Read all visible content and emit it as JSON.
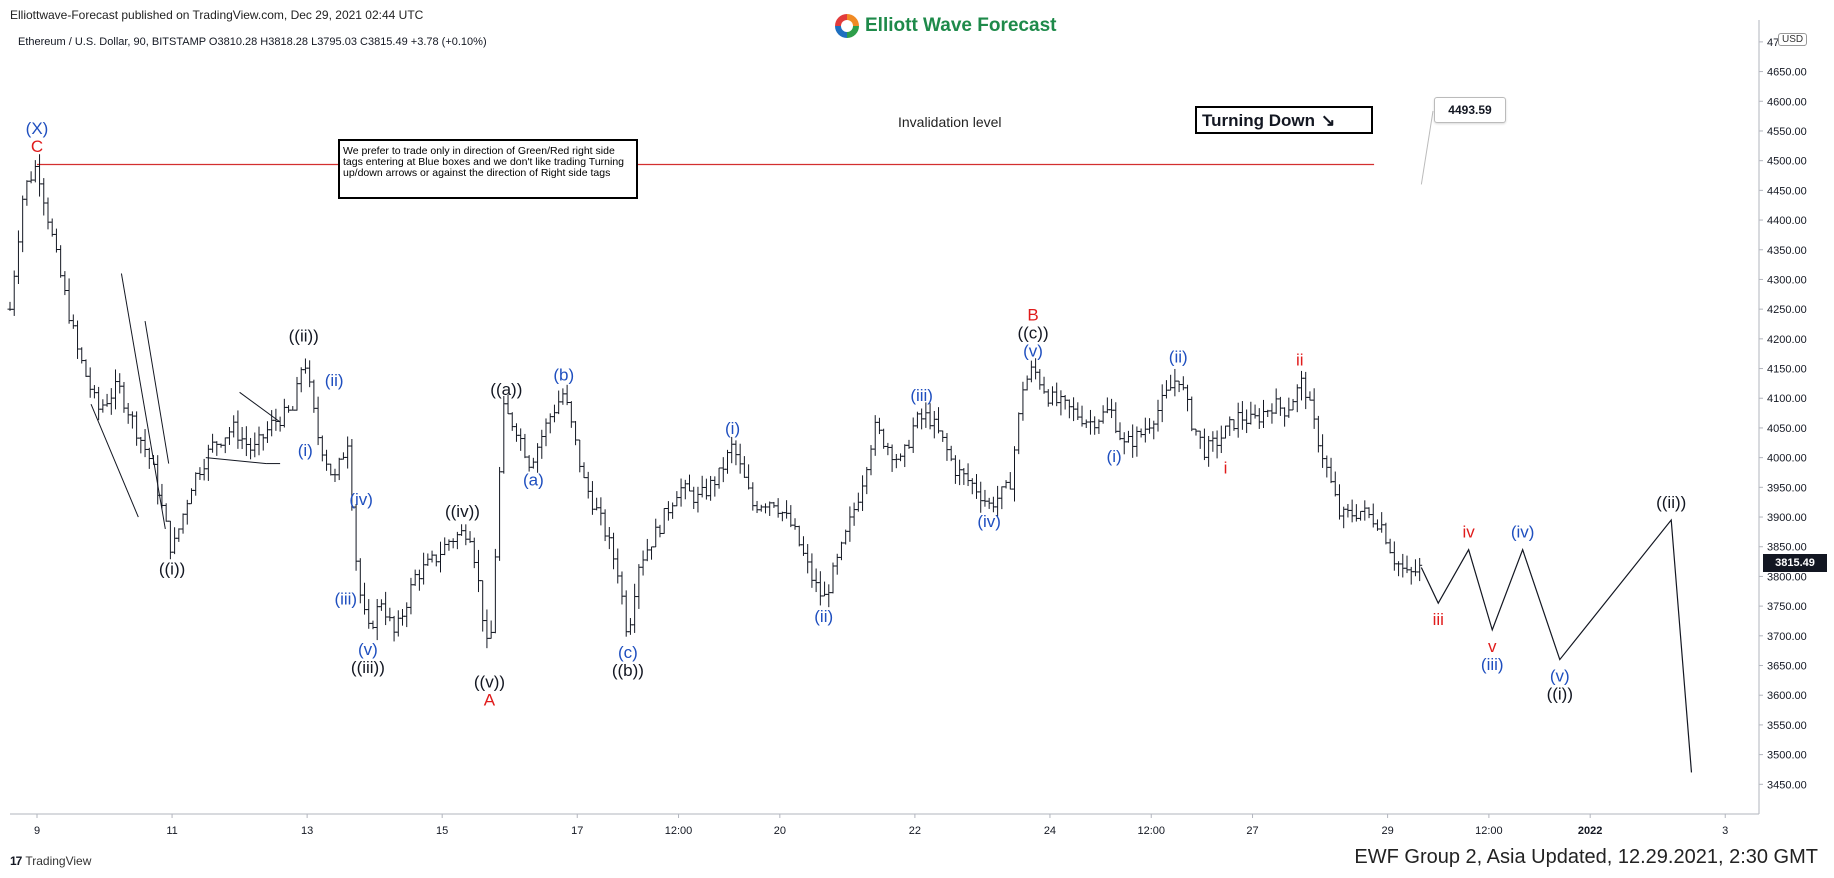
{
  "header": {
    "publisher": "Elliottwave-Forecast published on TradingView.com, Dec 29, 2021 02:44 UTC",
    "brand": "Elliott Wave Forecast",
    "symbol_line": "Ethereum / U.S. Dollar, 90, BITSTAMP  O3810.28  H3818.28  L3795.03  C3815.49  +3.78 (+0.10%)"
  },
  "footer": {
    "tradingview": "TradingView",
    "caption": "EWF Group 2, Asia Updated, 12.29.2021, 2:30 GMT"
  },
  "annotations": {
    "note": "We prefer to trade only in direction of Green/Red right side tags entering at Blue boxes and we don't like trading Turning up/down arrows or against the direction of Right side tags",
    "turning": "Turning Down",
    "turning_arrow": "↘",
    "invalidation_label": "Invalidation level",
    "invalidation_value": "4493.59",
    "currency": "USD",
    "current_price": "3815.49"
  },
  "colors": {
    "background": "#ffffff",
    "candle": "#131722",
    "wave_black": "#131722",
    "wave_blue": "#1f4fbf",
    "wave_red": "#e01b1b",
    "invalidation_line": "#d32f2f",
    "brand": "#1e8a4a"
  },
  "chart_data": {
    "type": "line",
    "title": "Ethereum / U.S. Dollar, 90, BITSTAMP",
    "y_axis": {
      "range": [
        3400,
        4720
      ],
      "ticks": [
        "4700.00",
        "4650.00",
        "4600.00",
        "4550.00",
        "4500.00",
        "4450.00",
        "4400.00",
        "4350.00",
        "4300.00",
        "4250.00",
        "4200.00",
        "4150.00",
        "4100.00",
        "4050.00",
        "4000.00",
        "3950.00",
        "3900.00",
        "3850.00",
        "3800.00",
        "3750.00",
        "3700.00",
        "3650.00",
        "3600.00",
        "3550.00",
        "3500.00",
        "3450.00"
      ]
    },
    "x_axis": {
      "range": [
        8.6,
        34.5
      ],
      "ticks": [
        {
          "t": 9,
          "label": "9"
        },
        {
          "t": 11,
          "label": "11"
        },
        {
          "t": 13,
          "label": "13"
        },
        {
          "t": 15,
          "label": "15"
        },
        {
          "t": 17,
          "label": "17"
        },
        {
          "t": 18.5,
          "label": "12:00"
        },
        {
          "t": 20,
          "label": "20"
        },
        {
          "t": 22,
          "label": "22"
        },
        {
          "t": 24,
          "label": "24"
        },
        {
          "t": 25.5,
          "label": "12:00"
        },
        {
          "t": 27,
          "label": "27"
        },
        {
          "t": 29,
          "label": "29"
        },
        {
          "t": 30.5,
          "label": "12:00"
        },
        {
          "t": 32,
          "label": "2022"
        },
        {
          "t": 34,
          "label": "3"
        }
      ]
    },
    "invalidation_level": 4493.59,
    "price_path": [
      [
        8.6,
        4250
      ],
      [
        8.8,
        4450
      ],
      [
        9.0,
        4494
      ],
      [
        9.3,
        4330
      ],
      [
        9.6,
        4180
      ],
      [
        9.9,
        4080
      ],
      [
        10.2,
        4120
      ],
      [
        10.5,
        4040
      ],
      [
        10.7,
        3990
      ],
      [
        11.0,
        3840
      ],
      [
        11.3,
        3960
      ],
      [
        11.6,
        4020
      ],
      [
        11.9,
        4050
      ],
      [
        12.2,
        4010
      ],
      [
        12.5,
        4060
      ],
      [
        12.8,
        4080
      ],
      [
        12.95,
        4175
      ],
      [
        13.15,
        4040
      ],
      [
        13.4,
        3960
      ],
      [
        13.6,
        4030
      ],
      [
        13.75,
        3790
      ],
      [
        13.9,
        3705
      ],
      [
        14.1,
        3760
      ],
      [
        14.3,
        3700
      ],
      [
        14.6,
        3800
      ],
      [
        14.9,
        3830
      ],
      [
        15.1,
        3860
      ],
      [
        15.4,
        3880
      ],
      [
        15.5,
        3820
      ],
      [
        15.7,
        3650
      ],
      [
        15.9,
        4080
      ],
      [
        16.1,
        4050
      ],
      [
        16.3,
        3990
      ],
      [
        16.6,
        4070
      ],
      [
        16.8,
        4110
      ],
      [
        17.1,
        3960
      ],
      [
        17.4,
        3880
      ],
      [
        17.6,
        3810
      ],
      [
        17.75,
        3700
      ],
      [
        17.9,
        3820
      ],
      [
        18.2,
        3880
      ],
      [
        18.5,
        3950
      ],
      [
        18.8,
        3930
      ],
      [
        19.1,
        3970
      ],
      [
        19.3,
        4020
      ],
      [
        19.6,
        3920
      ],
      [
        19.9,
        3930
      ],
      [
        20.2,
        3880
      ],
      [
        20.5,
        3790
      ],
      [
        20.65,
        3760
      ],
      [
        20.9,
        3840
      ],
      [
        21.2,
        3950
      ],
      [
        21.4,
        4050
      ],
      [
        21.6,
        4020
      ],
      [
        21.8,
        3990
      ],
      [
        22.0,
        4060
      ],
      [
        22.2,
        4070
      ],
      [
        22.4,
        4030
      ],
      [
        22.6,
        3980
      ],
      [
        22.9,
        3950
      ],
      [
        23.1,
        3920
      ],
      [
        23.4,
        3950
      ],
      [
        23.6,
        4120
      ],
      [
        23.75,
        4150
      ],
      [
        24.0,
        4100
      ],
      [
        24.3,
        4080
      ],
      [
        24.6,
        4060
      ],
      [
        24.9,
        4080
      ],
      [
        25.1,
        4020
      ],
      [
        25.35,
        4040
      ],
      [
        25.6,
        4080
      ],
      [
        25.9,
        4140
      ],
      [
        26.1,
        4060
      ],
      [
        26.3,
        4010
      ],
      [
        26.5,
        4030
      ],
      [
        26.8,
        4070
      ],
      [
        27.0,
        4060
      ],
      [
        27.3,
        4090
      ],
      [
        27.5,
        4080
      ],
      [
        27.75,
        4130
      ],
      [
        27.9,
        4060
      ],
      [
        28.1,
        3980
      ],
      [
        28.3,
        3900
      ],
      [
        28.6,
        3910
      ],
      [
        28.9,
        3890
      ],
      [
        29.1,
        3830
      ],
      [
        29.3,
        3800
      ],
      [
        29.5,
        3815
      ]
    ],
    "projection": [
      [
        29.5,
        3815
      ],
      [
        29.75,
        3755
      ],
      [
        30.2,
        3845
      ],
      [
        30.55,
        3710
      ],
      [
        31.0,
        3845
      ],
      [
        31.55,
        3660
      ],
      [
        33.2,
        3895
      ],
      [
        33.5,
        3470
      ]
    ],
    "trend_lines": [
      [
        [
          10.25,
          4310
        ],
        [
          10.9,
          3880
        ]
      ],
      [
        [
          10.6,
          4230
        ],
        [
          10.95,
          3990
        ]
      ],
      [
        [
          9.8,
          4090
        ],
        [
          10.5,
          3900
        ]
      ],
      [
        [
          12.0,
          4110
        ],
        [
          12.6,
          4060
        ]
      ],
      [
        [
          12.4,
          3990
        ],
        [
          12.6,
          3990
        ]
      ],
      [
        [
          11.5,
          4000
        ],
        [
          12.4,
          3990
        ]
      ]
    ],
    "wave_labels": [
      {
        "t": 9.0,
        "v": 4494,
        "text": "(X)",
        "color": "blue",
        "pos": "above2"
      },
      {
        "t": 9.0,
        "v": 4494,
        "text": "C",
        "color": "red",
        "pos": "above"
      },
      {
        "t": 11.0,
        "v": 3840,
        "text": "((i))",
        "color": "black",
        "pos": "below"
      },
      {
        "t": 12.95,
        "v": 4175,
        "text": "((ii))",
        "color": "black",
        "pos": "above"
      },
      {
        "t": 13.15,
        "v": 4040,
        "text": "(i)",
        "color": "blue",
        "pos": "belowleft"
      },
      {
        "t": 13.4,
        "v": 4100,
        "text": "(ii)",
        "color": "blue",
        "pos": "above"
      },
      {
        "t": 13.75,
        "v": 3790,
        "text": "(iii)",
        "color": "blue",
        "pos": "belowleft"
      },
      {
        "t": 13.8,
        "v": 3900,
        "text": "(iv)",
        "color": "blue",
        "pos": "above"
      },
      {
        "t": 13.9,
        "v": 3705,
        "text": "(v)",
        "color": "blue",
        "pos": "below"
      },
      {
        "t": 13.9,
        "v": 3705,
        "text": "((iii))",
        "color": "black",
        "pos": "below2"
      },
      {
        "t": 15.3,
        "v": 3880,
        "text": "((iv))",
        "color": "black",
        "pos": "above"
      },
      {
        "t": 15.7,
        "v": 3650,
        "text": "((v))",
        "color": "black",
        "pos": "below"
      },
      {
        "t": 15.7,
        "v": 3650,
        "text": "A",
        "color": "red",
        "pos": "below2"
      },
      {
        "t": 15.95,
        "v": 4085,
        "text": "((a))",
        "color": "black",
        "pos": "above"
      },
      {
        "t": 16.35,
        "v": 3990,
        "text": "(a)",
        "color": "blue",
        "pos": "below"
      },
      {
        "t": 16.8,
        "v": 4110,
        "text": "(b)",
        "color": "blue",
        "pos": "above"
      },
      {
        "t": 17.75,
        "v": 3700,
        "text": "(c)",
        "color": "blue",
        "pos": "below"
      },
      {
        "t": 17.75,
        "v": 3700,
        "text": "((b))",
        "color": "black",
        "pos": "below2"
      },
      {
        "t": 19.3,
        "v": 4020,
        "text": "(i)",
        "color": "blue",
        "pos": "above"
      },
      {
        "t": 20.65,
        "v": 3760,
        "text": "(ii)",
        "color": "blue",
        "pos": "below"
      },
      {
        "t": 22.1,
        "v": 4075,
        "text": "(iii)",
        "color": "blue",
        "pos": "above"
      },
      {
        "t": 23.1,
        "v": 3920,
        "text": "(iv)",
        "color": "blue",
        "pos": "below"
      },
      {
        "t": 23.75,
        "v": 4150,
        "text": "(v)",
        "color": "blue",
        "pos": "above"
      },
      {
        "t": 23.75,
        "v": 4150,
        "text": "((c))",
        "color": "black",
        "pos": "above2"
      },
      {
        "t": 23.75,
        "v": 4150,
        "text": "B",
        "color": "red",
        "pos": "above3"
      },
      {
        "t": 24.95,
        "v": 4030,
        "text": "(i)",
        "color": "blue",
        "pos": "below"
      },
      {
        "t": 25.9,
        "v": 4140,
        "text": "(ii)",
        "color": "blue",
        "pos": "above"
      },
      {
        "t": 26.6,
        "v": 4010,
        "text": "i",
        "color": "red",
        "pos": "below"
      },
      {
        "t": 27.7,
        "v": 4135,
        "text": "ii",
        "color": "red",
        "pos": "above"
      },
      {
        "t": 29.75,
        "v": 3755,
        "text": "iii",
        "color": "red",
        "pos": "below"
      },
      {
        "t": 30.2,
        "v": 3845,
        "text": "iv",
        "color": "red",
        "pos": "above"
      },
      {
        "t": 30.55,
        "v": 3710,
        "text": "v",
        "color": "red",
        "pos": "below"
      },
      {
        "t": 30.55,
        "v": 3710,
        "text": "(iii)",
        "color": "blue",
        "pos": "below2"
      },
      {
        "t": 31.0,
        "v": 3845,
        "text": "(iv)",
        "color": "blue",
        "pos": "above"
      },
      {
        "t": 31.55,
        "v": 3660,
        "text": "(v)",
        "color": "blue",
        "pos": "below"
      },
      {
        "t": 31.55,
        "v": 3660,
        "text": "((i))",
        "color": "black",
        "pos": "below2"
      },
      {
        "t": 33.2,
        "v": 3895,
        "text": "((ii))",
        "color": "black",
        "pos": "above"
      }
    ]
  }
}
